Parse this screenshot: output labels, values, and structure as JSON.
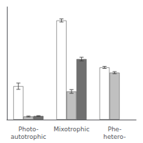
{
  "chart_data": {
    "type": "bar",
    "categories": [
      "Photo-\nautotrophic",
      "Mixotrophic",
      "Phe-\nhetero-"
    ],
    "series": [
      {
        "color": "#ffffff",
        "values": [
          0.32,
          0.95,
          0.5
        ],
        "errors": [
          0.03,
          0.015,
          0.01
        ]
      },
      {
        "color": "#c0c0c0",
        "values": [
          0.03,
          0.27,
          0.45
        ],
        "errors": [
          0.004,
          0.018,
          0.01
        ]
      },
      {
        "color": "#707070",
        "values": [
          0.035,
          0.58,
          0.0
        ],
        "errors": [
          0.003,
          0.018,
          0.0
        ]
      }
    ],
    "ylim": [
      0,
      1.08
    ],
    "grid": false,
    "tick_labels": "x"
  }
}
